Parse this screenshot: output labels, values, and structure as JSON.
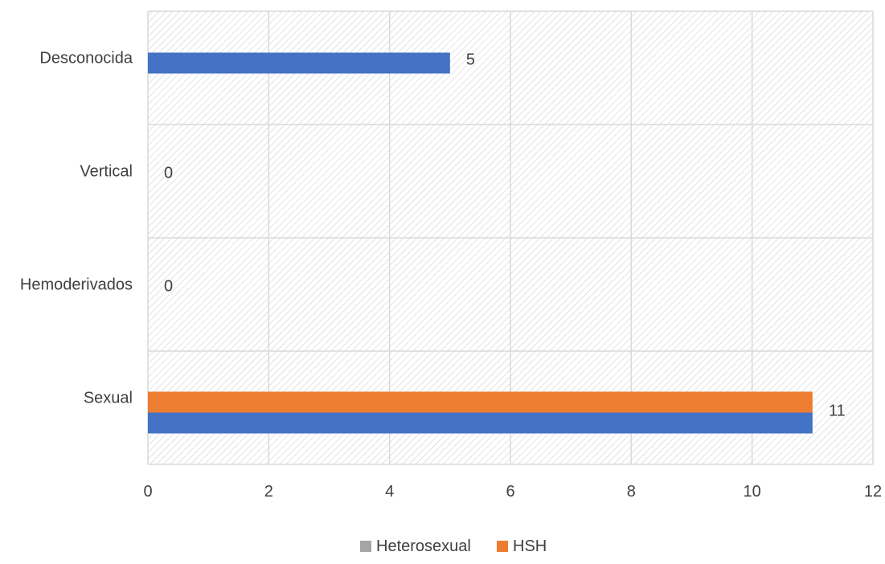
{
  "chart_data": {
    "type": "bar",
    "orientation": "horizontal",
    "categories": [
      "Desconocida",
      "Vertical",
      "Hemoderivados",
      "Sexual"
    ],
    "series": [
      {
        "name": "HSH",
        "values": [
          null,
          null,
          null,
          11
        ],
        "color": "#ED7D31"
      },
      {
        "name": "",
        "values": [
          5,
          0,
          0,
          11
        ],
        "color": "#4472C4"
      }
    ],
    "data_labels": [
      "5",
      "0",
      "0",
      "11"
    ],
    "xlim": [
      0,
      12
    ],
    "xticks": [
      "0",
      "2",
      "4",
      "6",
      "8",
      "10",
      "12"
    ],
    "grid": true,
    "legend_position": "bottom",
    "legend": [
      {
        "label": "Heterosexual",
        "color": "#A5A5A5"
      },
      {
        "label": "HSH",
        "color": "#ED7D31"
      }
    ],
    "title": "",
    "xlabel": "",
    "ylabel": ""
  }
}
